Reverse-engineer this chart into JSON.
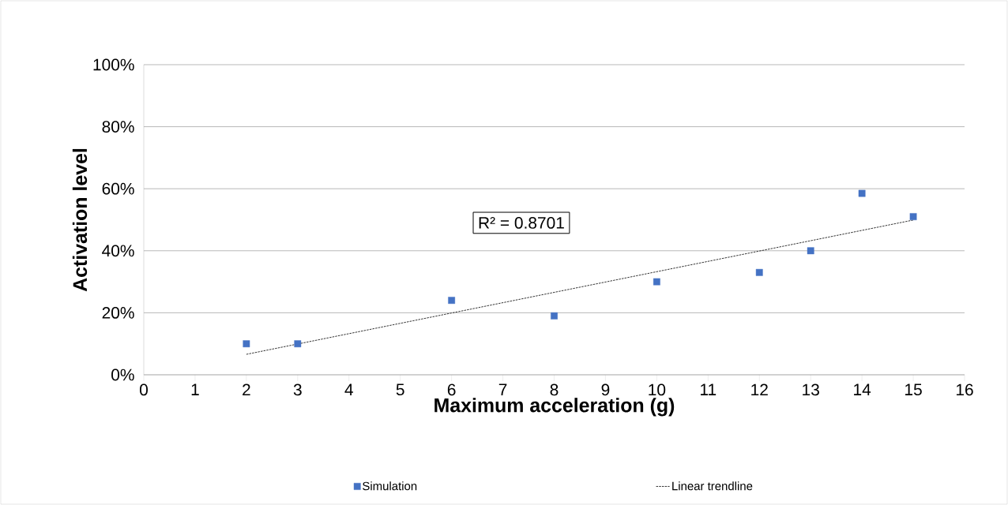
{
  "chart_data": {
    "type": "scatter",
    "xlabel": "Maximum acceleration (g)",
    "ylabel": "Activation level",
    "series": [
      {
        "name": "Simulation",
        "color": "#4472c4",
        "marker": "square",
        "x": [
          2,
          3,
          6,
          8,
          10,
          12,
          13,
          14,
          15
        ],
        "values": [
          10,
          10,
          24,
          19,
          30,
          33,
          40,
          58.5,
          51
        ]
      },
      {
        "name": "Linear trendline",
        "type": "line",
        "color": "#000000",
        "marker": "none",
        "line_style": "dashed",
        "x": [
          2,
          15
        ],
        "values": [
          6.6,
          49.9
        ]
      }
    ],
    "annotations": [
      "R² = 0.8701"
    ],
    "xlim": [
      0,
      16
    ],
    "xticks": [
      0,
      1,
      2,
      3,
      4,
      5,
      6,
      7,
      8,
      9,
      10,
      11,
      12,
      13,
      14,
      15,
      16
    ],
    "ylim": [
      0,
      100
    ],
    "yticks": [
      {
        "value": 0,
        "label": "0%"
      },
      {
        "value": 20,
        "label": "20%"
      },
      {
        "value": 40,
        "label": "40%"
      },
      {
        "value": 60,
        "label": "60%"
      },
      {
        "value": 80,
        "label": "80%"
      },
      {
        "value": 100,
        "label": "100%"
      }
    ],
    "grid": "y",
    "legend": "bottom"
  }
}
